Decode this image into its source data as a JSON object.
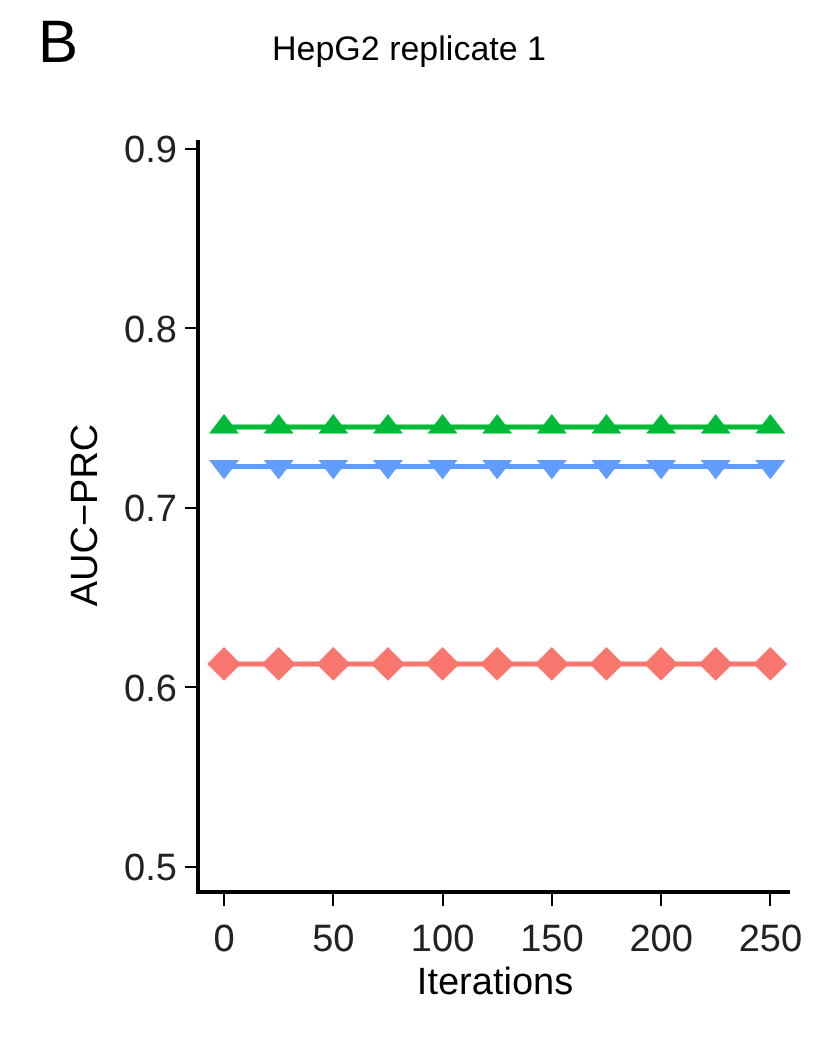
{
  "chart_data": {
    "type": "line",
    "title": "HepG2 replicate 1",
    "xlabel": "Iterations",
    "ylabel": "AUC−PRC",
    "annotations": [
      "B"
    ],
    "x": [
      0,
      25,
      50,
      75,
      100,
      125,
      150,
      175,
      200,
      225,
      250
    ],
    "series": [
      {
        "color": "#00ba38",
        "marker": "triangle",
        "values": [
          0.745,
          0.745,
          0.745,
          0.745,
          0.745,
          0.745,
          0.745,
          0.745,
          0.745,
          0.745,
          0.745
        ]
      },
      {
        "color": "#619cff",
        "marker": "triangle-down",
        "values": [
          0.723,
          0.723,
          0.723,
          0.723,
          0.723,
          0.723,
          0.723,
          0.723,
          0.723,
          0.723,
          0.723
        ]
      },
      {
        "color": "#f8766d",
        "marker": "diamond",
        "values": [
          0.613,
          0.613,
          0.613,
          0.613,
          0.613,
          0.613,
          0.613,
          0.613,
          0.613,
          0.613,
          0.613
        ]
      }
    ],
    "xlim": [
      -11,
      259
    ],
    "xticks": [
      0,
      50,
      100,
      150,
      200,
      250
    ],
    "ylim": [
      0.487,
      0.905
    ],
    "yticks": [
      0.5,
      0.6,
      0.7,
      0.8,
      0.9
    ],
    "grid": false,
    "line_style": "solid"
  }
}
